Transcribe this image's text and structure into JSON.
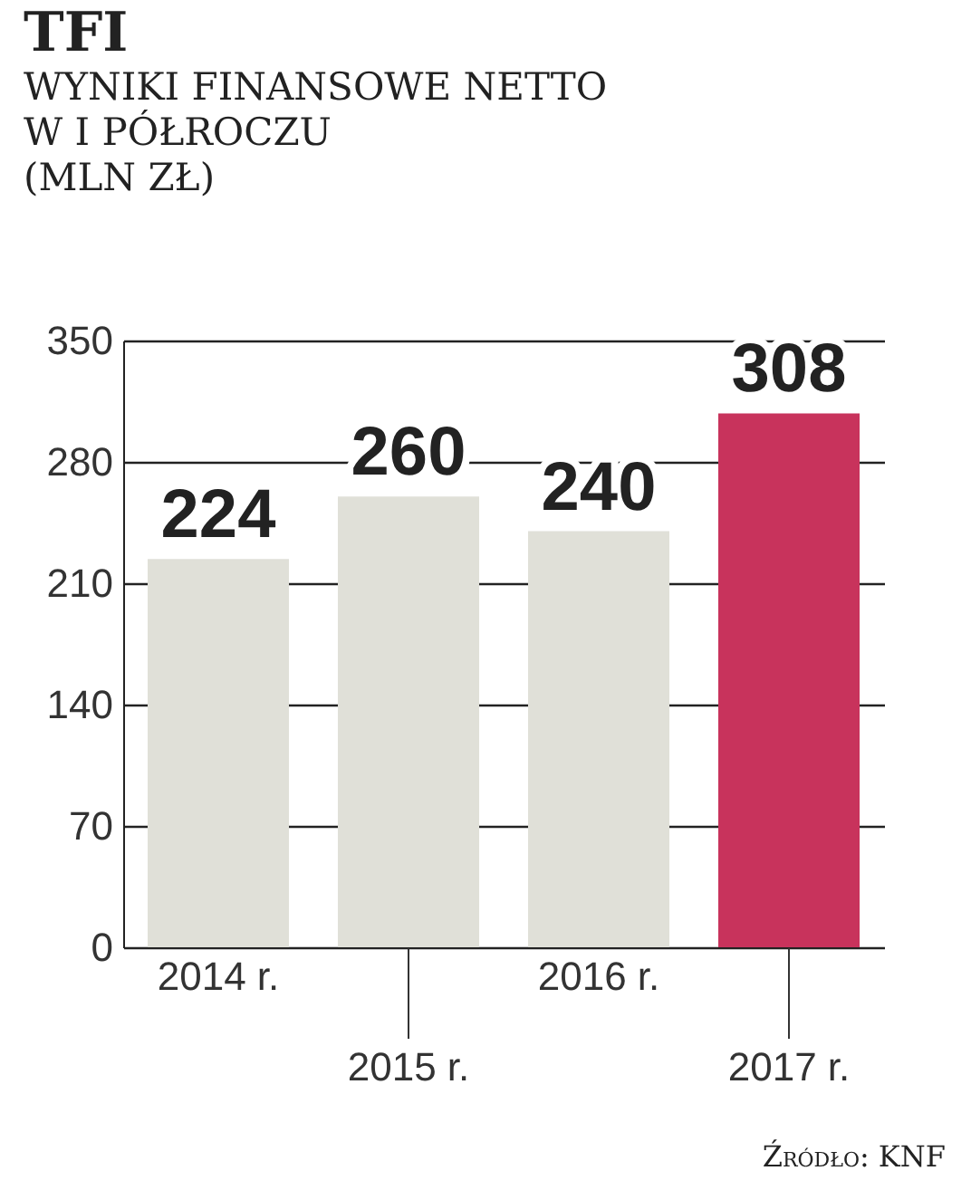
{
  "chart_data": {
    "type": "bar",
    "title": "TFI",
    "subtitle": "WYNIKI FINANSOWE NETTO\nW I PÓŁROCZU\n(MLN ZŁ)",
    "categories": [
      "2014 r.",
      "2015 r.",
      "2016 r.",
      "2017 r."
    ],
    "values": [
      224,
      260,
      240,
      308
    ],
    "colors": [
      "#e0e0d8",
      "#e0e0d8",
      "#e0e0d8",
      "#c8335c"
    ],
    "ylim": [
      0,
      350
    ],
    "yticks": [
      0,
      70,
      140,
      210,
      280,
      350
    ],
    "grid": "y",
    "data_labels": true,
    "annotations": [
      "Źródło: KNF"
    ]
  }
}
